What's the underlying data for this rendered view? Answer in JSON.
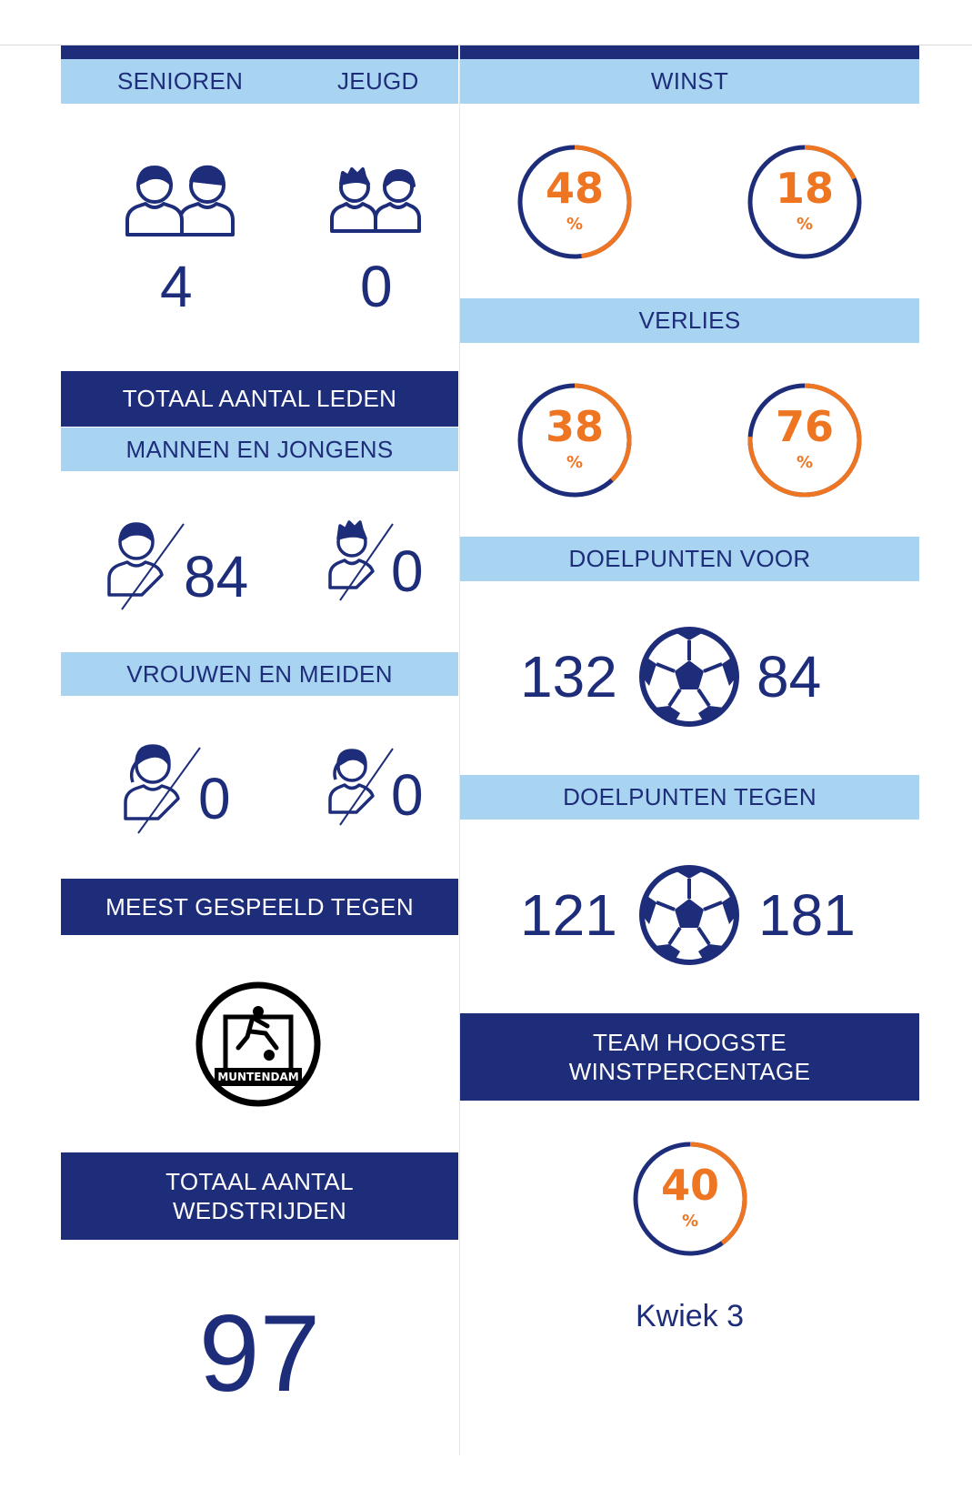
{
  "left": {
    "header_senioren": "SENIOREN",
    "header_jeugd": "JEUGD",
    "senioren_count": "4",
    "jeugd_count": "0",
    "totaal_leden_title": "TOTAAL AANTAL LEDEN",
    "mannen_title": "MANNEN EN JONGENS",
    "mannen_senior": "84",
    "mannen_jeugd": "0",
    "vrouwen_title": "VROUWEN EN MEIDEN",
    "vrouwen_senior": "0",
    "vrouwen_jeugd": "0",
    "meest_gespeeld_title": "MEEST GESPEELD TEGEN",
    "opponent_logo_text": "MUNTENDAM",
    "totaal_wedstrijden_line1": "TOTAAL AANTAL",
    "totaal_wedstrijden_line2": "WEDSTRIJDEN",
    "totaal_wedstrijden_value": "97"
  },
  "right": {
    "winst_title": "WINST",
    "winst_senior": 48,
    "winst_jeugd": 18,
    "verlies_title": "VERLIES",
    "verlies_senior": 38,
    "verlies_jeugd": 76,
    "percent_sign": "%",
    "doelpunten_voor_title": "DOELPUNTEN VOOR",
    "doelpunten_voor_senior": "132",
    "doelpunten_voor_jeugd": "84",
    "doelpunten_tegen_title": "DOELPUNTEN TEGEN",
    "doelpunten_tegen_senior": "121",
    "doelpunten_tegen_jeugd": "181",
    "team_hoogste_line1": "TEAM HOOGSTE",
    "team_hoogste_line2": "WINSTPERCENTAGE",
    "team_hoogste_pct": 40,
    "team_hoogste_name": "Kwiek 3"
  },
  "colors": {
    "navy": "#1e2d7a",
    "light_blue": "#a8d4f2",
    "orange": "#ee7623"
  }
}
